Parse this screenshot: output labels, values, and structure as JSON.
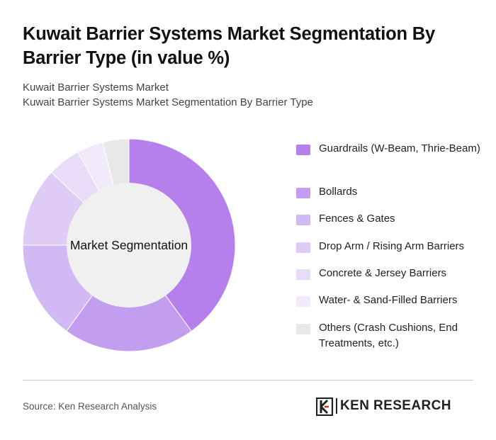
{
  "header": {
    "title": "Kuwait Barrier Systems Market Segmentation By Barrier Type (in value %)",
    "subtitle_line1": "Kuwait Barrier Systems Market",
    "subtitle_line2": "Kuwait Barrier Systems Market Segmentation By Barrier Type"
  },
  "chart_data": {
    "type": "pie",
    "donut": true,
    "center_label": "Market Segmentation",
    "categories": [
      "Guardrails (W-Beam, Thrie-Beam)",
      "Bollards",
      "Fences & Gates",
      "Drop Arm / Rising Arm Barriers",
      "Concrete & Jersey Barriers",
      "Water- & Sand-Filled Barriers",
      "Others (Crash Cushions, End Treatments, etc.)"
    ],
    "values": [
      40,
      20,
      15,
      12,
      5,
      4,
      4
    ],
    "colors": [
      "#b580ec",
      "#c39df0",
      "#d2b9f4",
      "#dfcbf6",
      "#e8dcf8",
      "#f1eafb",
      "#e8e8e8"
    ],
    "legend_position": "right"
  },
  "footer": {
    "source": "Source: Ken Research Analysis",
    "logo_text": "KEN RESEARCH"
  }
}
